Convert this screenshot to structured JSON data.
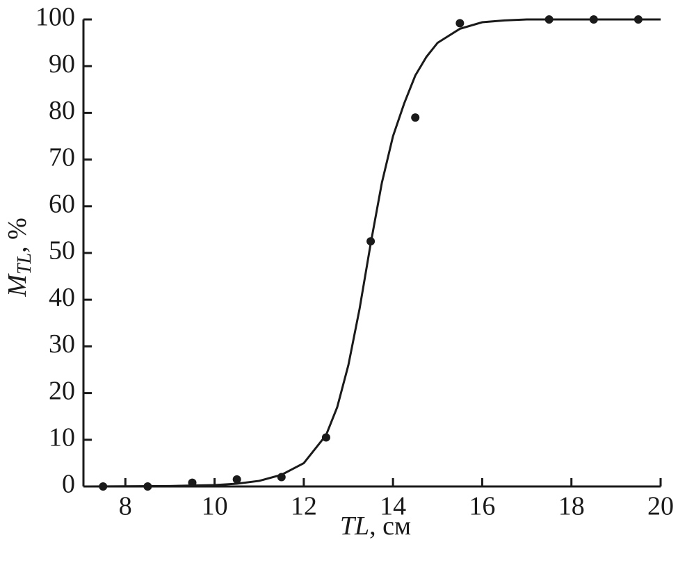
{
  "chart_data": {
    "type": "scatter",
    "x_label": {
      "main": "TL",
      "suffix": ", см"
    },
    "y_label": {
      "main": "M",
      "sub": "TL",
      "suffix": ", %"
    },
    "xlim": [
      7.06,
      20
    ],
    "xticks": [
      8,
      10,
      12,
      14,
      16,
      18,
      20
    ],
    "ylim": [
      0,
      100
    ],
    "yticks": [
      0,
      10,
      20,
      30,
      40,
      50,
      60,
      70,
      80,
      90,
      100
    ],
    "series": [
      {
        "type": "scatter",
        "color": "#1a1a1a",
        "x": [
          7.5,
          8.5,
          9.5,
          10.5,
          11.5,
          12.5,
          13.5,
          14.5,
          15.5,
          17.5,
          18.5,
          19.5
        ],
        "values": [
          0,
          0,
          0.8,
          1.5,
          2,
          10.5,
          52.5,
          79,
          99.2,
          100,
          100,
          100
        ]
      },
      {
        "type": "line",
        "color": "#1a1a1a",
        "x": [
          7.06,
          9,
          10,
          10.5,
          11,
          11.5,
          12,
          12.5,
          12.75,
          13,
          13.25,
          13.5,
          13.75,
          14,
          14.25,
          14.5,
          14.75,
          15,
          15.5,
          16,
          16.5,
          17,
          20
        ],
        "values": [
          0,
          0.1,
          0.3,
          0.6,
          1.2,
          2.5,
          5,
          11,
          17,
          26,
          38,
          52,
          65,
          75,
          82,
          88,
          92,
          95,
          98,
          99.4,
          99.8,
          100,
          100
        ]
      }
    ]
  }
}
